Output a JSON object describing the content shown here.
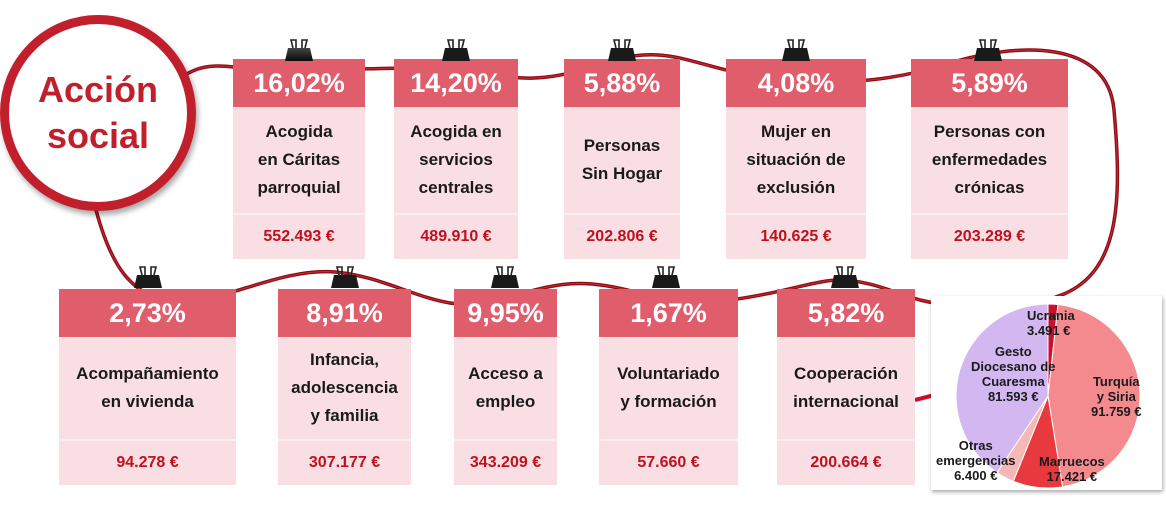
{
  "title": {
    "line1": "Acción",
    "line2": "social"
  },
  "cards_top": [
    {
      "pct": "16,02%",
      "label_lines": [
        "Acogida",
        "en Cáritas",
        "parroquial"
      ],
      "amount": "552.493 €"
    },
    {
      "pct": "14,20%",
      "label_lines": [
        "Acogida en",
        "servicios",
        "centrales"
      ],
      "amount": "489.910 €"
    },
    {
      "pct": "5,88%",
      "label_lines": [
        "Personas",
        "Sin Hogar"
      ],
      "amount": "202.806 €"
    },
    {
      "pct": "4,08%",
      "label_lines": [
        "Mujer en",
        "situación de",
        "exclusión"
      ],
      "amount": "140.625 €"
    },
    {
      "pct": "5,89%",
      "label_lines": [
        "Personas con",
        "enfermedades",
        "crónicas"
      ],
      "amount": "203.289 €"
    }
  ],
  "cards_bottom": [
    {
      "pct": "2,73%",
      "label_lines": [
        "Acompañamiento",
        "en vivienda"
      ],
      "amount": "94.278 €"
    },
    {
      "pct": "8,91%",
      "label_lines": [
        "Infancia,",
        "adolescencia",
        "y familia"
      ],
      "amount": "307.177 €"
    },
    {
      "pct": "9,95%",
      "label_lines": [
        "Acceso a",
        "empleo"
      ],
      "amount": "343.209 €"
    },
    {
      "pct": "1,67%",
      "label_lines": [
        "Voluntariado",
        "y formación"
      ],
      "amount": "57.660 €"
    },
    {
      "pct": "5,82%",
      "label_lines": [
        "Cooperación",
        "internacional"
      ],
      "amount": "200.664 €"
    }
  ],
  "chart_data": {
    "type": "pie",
    "slices": [
      {
        "label": "Ucrania",
        "value": 3491,
        "amount_text": "3.491 €",
        "color": "#c8102e"
      },
      {
        "label": "Turquía y Siria",
        "value": 91759,
        "amount_text": "91.759 €",
        "color": "#f48a8e"
      },
      {
        "label": "Marruecos",
        "value": 17421,
        "amount_text": "17.421 €",
        "color": "#e8393e"
      },
      {
        "label": "Otras emergencias",
        "value": 6400,
        "amount_text": "6.400 €",
        "color": "#f6b7b7"
      },
      {
        "label": "Gesto Diocesano de Cuaresma",
        "value": 81593,
        "amount_text": "81.593 €",
        "color": "#d2b7f0"
      }
    ]
  },
  "pie_labels": {
    "ucrania": {
      "name": "Ucrania",
      "amount": "3.491 €"
    },
    "turquia": {
      "line1": "Turquía",
      "line2": "y Siria",
      "amount": "91.759 €"
    },
    "marruecos": {
      "name": "Marruecos",
      "amount": "17.421 €"
    },
    "otras": {
      "line1": "Otras",
      "line2": "emergencias",
      "amount": "6.400 €"
    },
    "gesto": {
      "line1": "Gesto",
      "line2": "Diocesano de",
      "line3": "Cuaresma",
      "amount": "81.593 €"
    }
  },
  "colors": {
    "accent": "#c21f2d",
    "card_header": "#e05d6c",
    "card_body": "#f9dfe3",
    "amount": "#c0101e",
    "wire": "#9a0d14"
  },
  "icons": {
    "clip": "binder-clip-icon",
    "arrow": "arrow-right-icon"
  }
}
